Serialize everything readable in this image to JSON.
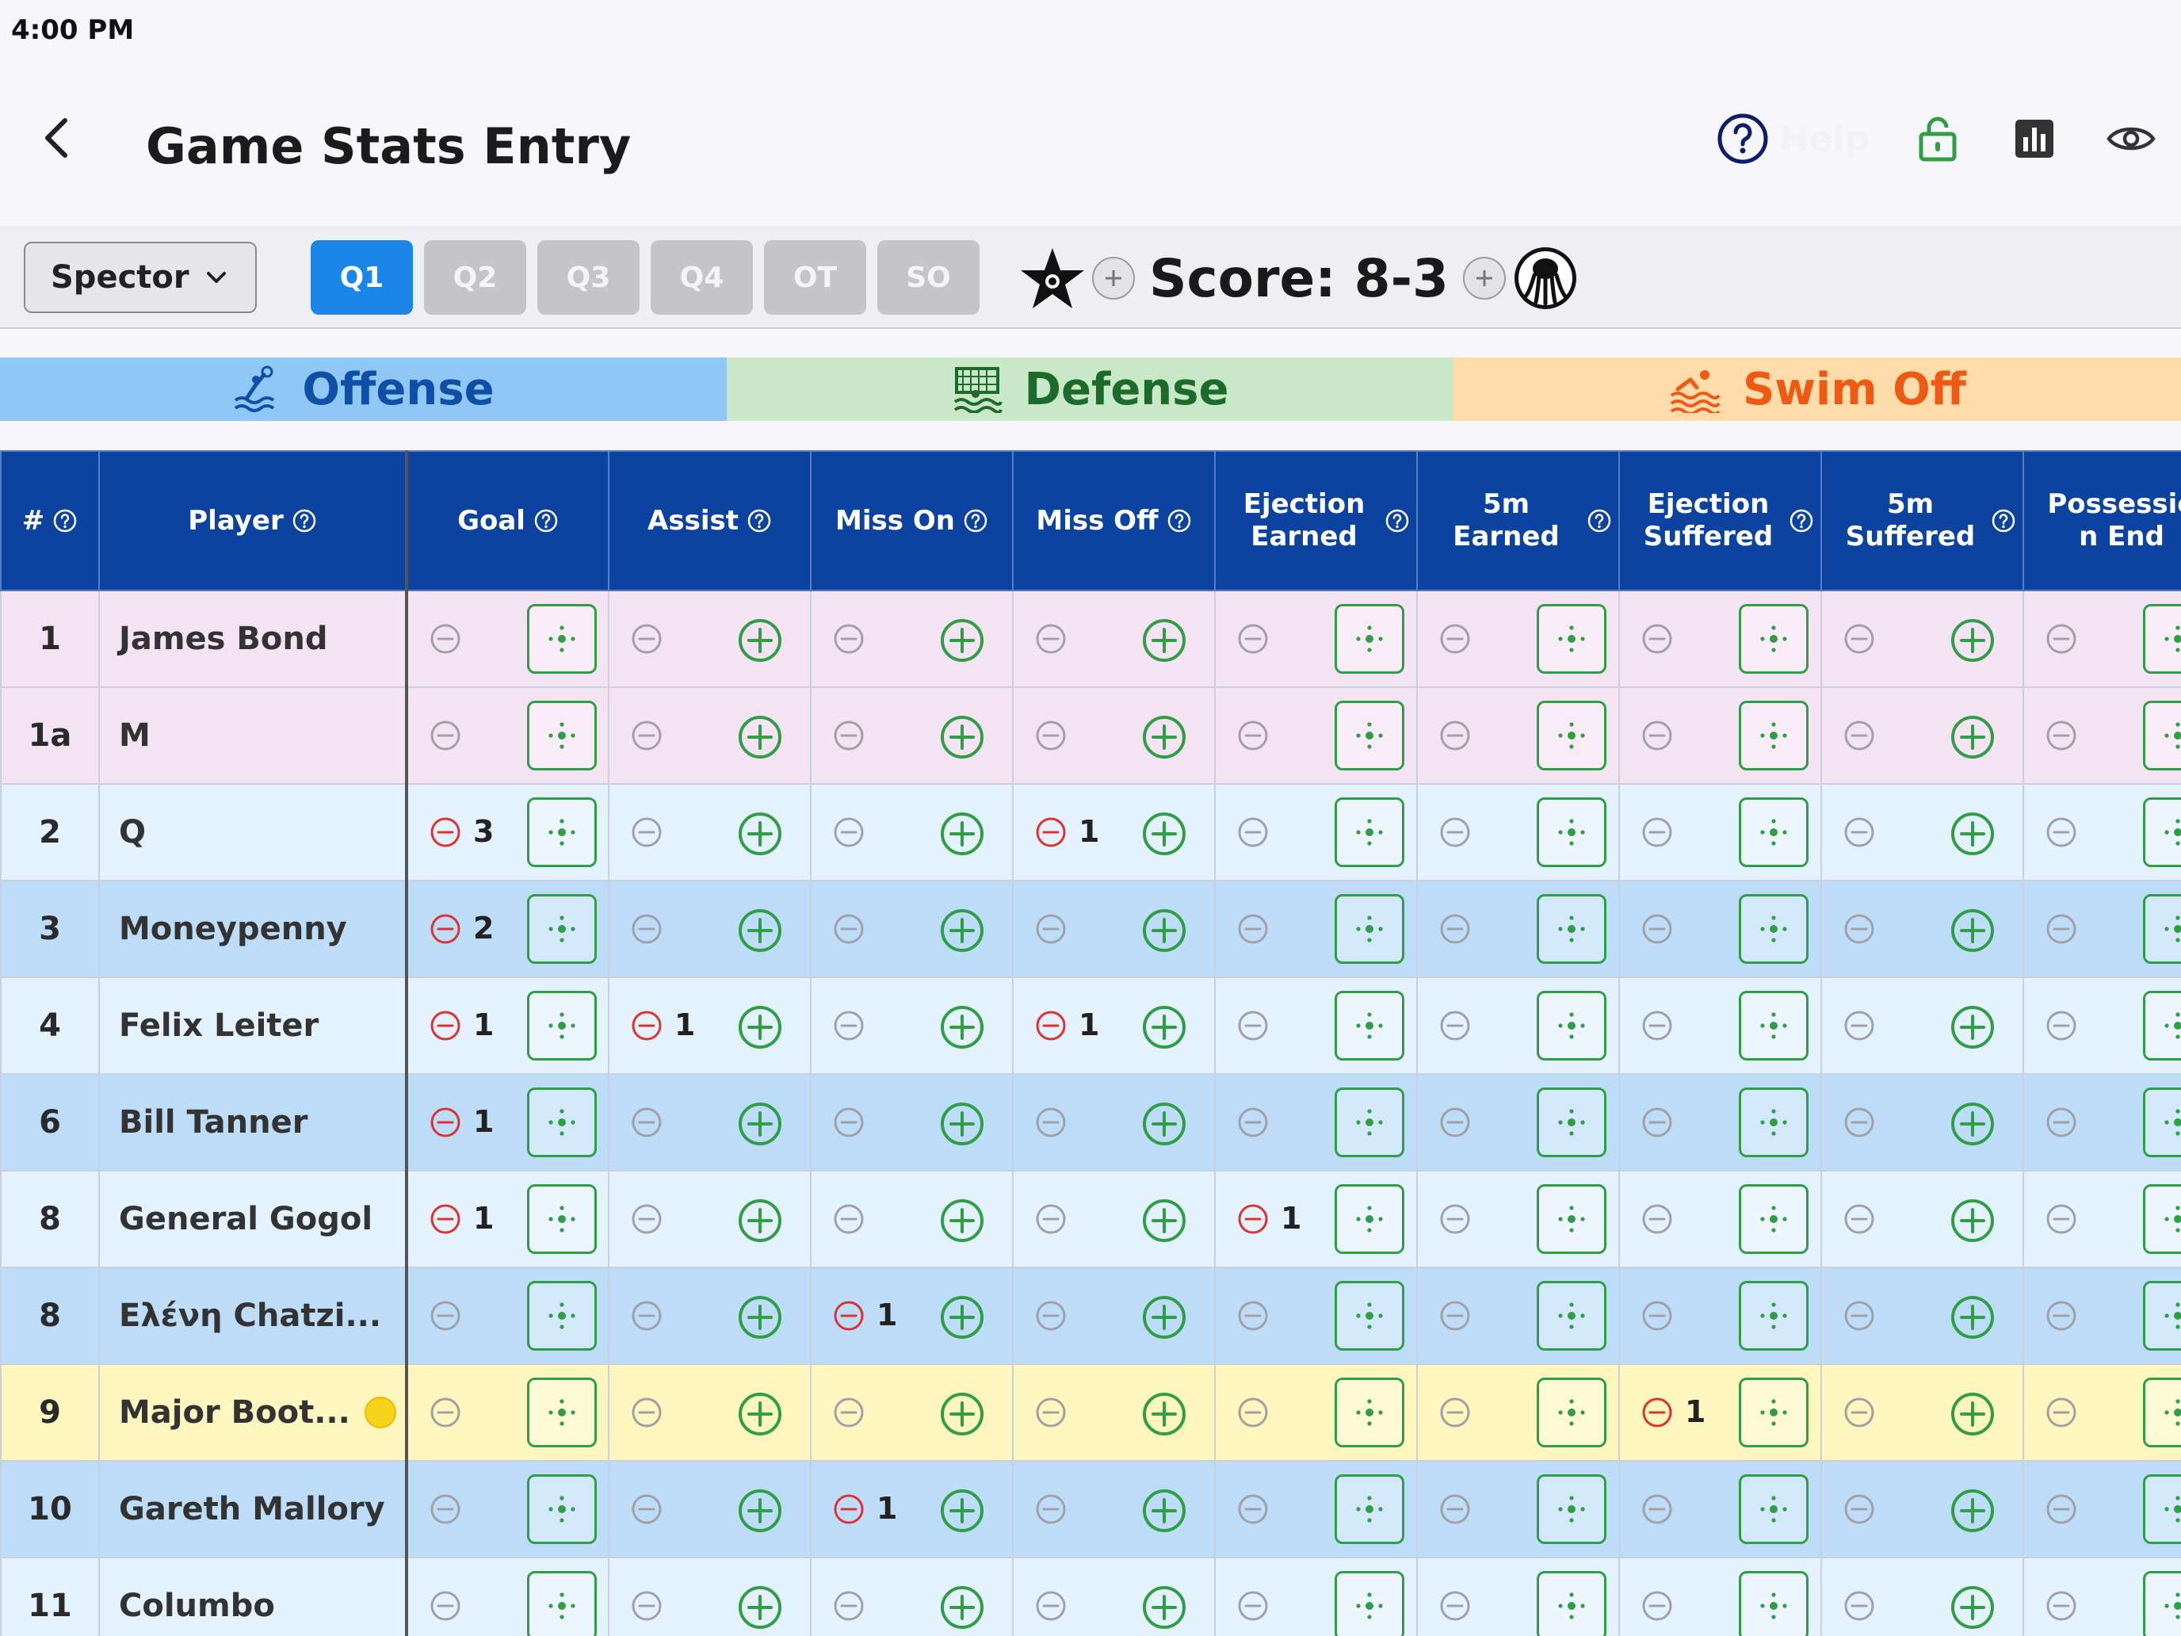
{
  "status_bar": {
    "time": "4:00 PM"
  },
  "header": {
    "title": "Game Stats Entry",
    "help_label": "Help"
  },
  "toolbar": {
    "team_selected": "Spector",
    "quarters": [
      {
        "label": "Q1",
        "active": true
      },
      {
        "label": "Q2",
        "active": false
      },
      {
        "label": "Q3",
        "active": false
      },
      {
        "label": "Q4",
        "active": false
      },
      {
        "label": "OT",
        "active": false
      },
      {
        "label": "SO",
        "active": false
      }
    ],
    "score": "Score: 8-3",
    "home_logo_icon": "star-team-logo-icon",
    "away_logo_icon": "octopus-team-logo-icon"
  },
  "categories": [
    {
      "label": "Offense",
      "icon": "water-polo-player-icon",
      "color": "#0f4fa6",
      "bg": "#8fc8f7"
    },
    {
      "label": "Defense",
      "icon": "goal-net-icon",
      "color": "#1d6b2a",
      "bg": "#c8e8c7"
    },
    {
      "label": "Swim Off",
      "icon": "swimmer-icon",
      "color": "#ee5a14",
      "bg": "#ffdcaa"
    }
  ],
  "table": {
    "columns": [
      {
        "label": "#",
        "help": true
      },
      {
        "label": "Player",
        "help": true
      },
      {
        "label": "Goal",
        "help": true,
        "button": "locate"
      },
      {
        "label": "Assist",
        "help": true,
        "button": "plus"
      },
      {
        "label": "Miss On",
        "help": true,
        "button": "plus"
      },
      {
        "label": "Miss Off",
        "help": true,
        "button": "plus"
      },
      {
        "label": "Ejection Earned",
        "line1": "Ejection",
        "line2": "Earned",
        "help": true,
        "button": "locate"
      },
      {
        "label": "5m Earned",
        "line1": "5m",
        "line2": "Earned",
        "help": true,
        "button": "locate"
      },
      {
        "label": "Ejection Suffered",
        "line1": "Ejection",
        "line2": "Suffered",
        "help": true,
        "button": "locate"
      },
      {
        "label": "5m Suffered",
        "line1": "5m",
        "line2": "Suffered",
        "help": true,
        "button": "plus"
      },
      {
        "label": "Possession End",
        "line1": "Possessio",
        "line2": "n End",
        "help": false,
        "button": "locate"
      }
    ],
    "rows": [
      {
        "num": "1",
        "player": "James Bond",
        "style": "pink",
        "flag": false,
        "stats": [
          "",
          "",
          "",
          "",
          "",
          "",
          "",
          "",
          ""
        ]
      },
      {
        "num": "1a",
        "player": "M",
        "style": "pink",
        "flag": false,
        "stats": [
          "",
          "",
          "",
          "",
          "",
          "",
          "",
          "",
          ""
        ]
      },
      {
        "num": "2",
        "player": "Q",
        "style": "light",
        "flag": false,
        "stats": [
          "3",
          "",
          "",
          "1",
          "",
          "",
          "",
          "",
          ""
        ]
      },
      {
        "num": "3",
        "player": "Moneypenny",
        "style": "blue",
        "flag": false,
        "stats": [
          "2",
          "",
          "",
          "",
          "",
          "",
          "",
          "",
          ""
        ]
      },
      {
        "num": "4",
        "player": "Felix Leiter",
        "style": "light",
        "flag": false,
        "stats": [
          "1",
          "1",
          "",
          "1",
          "",
          "",
          "",
          "",
          ""
        ]
      },
      {
        "num": "6",
        "player": "Bill Tanner",
        "style": "blue",
        "flag": false,
        "stats": [
          "1",
          "",
          "",
          "",
          "",
          "",
          "",
          "",
          ""
        ]
      },
      {
        "num": "8",
        "player": "General Gogol",
        "style": "light",
        "flag": false,
        "stats": [
          "1",
          "",
          "",
          "",
          "1",
          "",
          "",
          "",
          ""
        ]
      },
      {
        "num": "8",
        "player": "Ελένη Chatzi...",
        "style": "blue",
        "flag": false,
        "stats": [
          "",
          "",
          "1",
          "",
          "",
          "",
          "",
          "",
          ""
        ]
      },
      {
        "num": "9",
        "player": "Major Boot...",
        "style": "yellow",
        "flag": true,
        "stats": [
          "",
          "",
          "",
          "",
          "",
          "",
          "1",
          "",
          ""
        ]
      },
      {
        "num": "10",
        "player": "Gareth Mallory",
        "style": "blue",
        "flag": false,
        "stats": [
          "",
          "",
          "1",
          "",
          "",
          "",
          "",
          "",
          ""
        ]
      },
      {
        "num": "11",
        "player": "Columbo",
        "style": "light",
        "flag": false,
        "stats": [
          "",
          "",
          "",
          "",
          "",
          "",
          "",
          "",
          ""
        ]
      }
    ]
  },
  "colors": {
    "primary_blue": "#1c86e8",
    "header_navy": "#0c43a0",
    "add_green": "#2f9e44",
    "remove_red": "#e03131",
    "disabled_gray": "#a0a0a5"
  }
}
